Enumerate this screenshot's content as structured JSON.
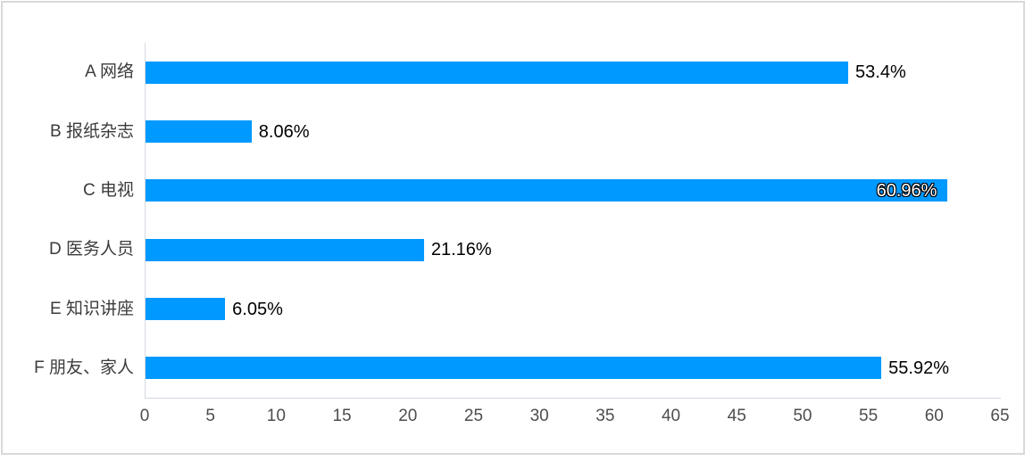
{
  "chart": {
    "frame_border_color": "#d9d9d9",
    "background": "#ffffff"
  },
  "chart_data": {
    "type": "bar",
    "orientation": "horizontal",
    "title": "",
    "xlabel": "",
    "ylabel": "",
    "legend": "none",
    "grid": false,
    "categories": [
      "A 网络",
      "B 报纸杂志",
      "C 电视",
      "D 医务人员",
      "E 知识讲座",
      "F 朋友、家人"
    ],
    "values": [
      53.4,
      8.06,
      60.96,
      21.16,
      6.05,
      55.92
    ],
    "data_labels": [
      "53.4%",
      "8.06%",
      "60.96%",
      "21.16%",
      "6.05%",
      "55.92%"
    ],
    "data_label_inside": [
      false,
      false,
      true,
      false,
      false,
      false
    ],
    "x_ticks": [
      0,
      5,
      10,
      15,
      20,
      25,
      30,
      35,
      40,
      45,
      50,
      55,
      60,
      65
    ],
    "xlim": [
      0,
      65
    ],
    "colors": {
      "bar": "#0099ff",
      "axis_line": "#d4d9e1",
      "tick_label": "#4d4d4d",
      "category_label": "#3b3b3b",
      "data_label": "#000000",
      "data_label_inside": "#ffffff",
      "data_label_inside_outline": "#000000"
    }
  }
}
